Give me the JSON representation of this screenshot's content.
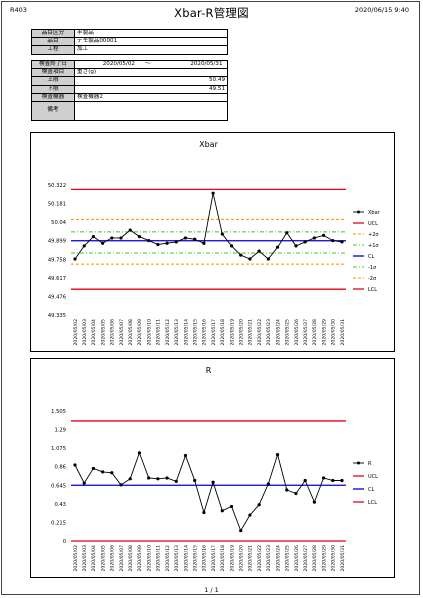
{
  "header": {
    "code": "R403",
    "title": "Xbar-R管理図",
    "datetime": "2020/06/15 9:40"
  },
  "product": [
    {
      "label": "品目区分",
      "value": "半製品"
    },
    {
      "label": "品目",
      "value": "デモ製品00001"
    },
    {
      "label": "工程",
      "value": "加工"
    }
  ],
  "inspection": {
    "period_label": "検査終了日",
    "period_from": "2020/05/02",
    "period_sep": "～",
    "period_to": "2020/05/31",
    "item_label": "検査項目",
    "item_value": "重さ(g)",
    "upper_label": "上限",
    "upper_value": "50.49",
    "lower_label": "下限",
    "lower_value": "49.51",
    "device_label": "検査機器",
    "device_value": "検査機器2",
    "remarks_label": "備考",
    "remarks_value": ""
  },
  "footer": {
    "page": "1 / 1"
  },
  "colors": {
    "ucl": "#e8001c",
    "cl": "#0000cc",
    "sigma2": "#ff8c00",
    "sigma1": "#33cc33",
    "series": "#000000"
  },
  "chart_data": [
    {
      "type": "line",
      "title": "Xbar",
      "x": [
        "2020/05/02",
        "2020/05/03",
        "2020/05/04",
        "2020/05/05",
        "2020/05/06",
        "2020/05/07",
        "2020/05/08",
        "2020/05/09",
        "2020/05/10",
        "2020/05/11",
        "2020/05/12",
        "2020/05/13",
        "2020/05/14",
        "2020/05/15",
        "2020/05/16",
        "2020/05/17",
        "2020/05/18",
        "2020/05/19",
        "2020/05/20",
        "2020/05/21",
        "2020/05/22",
        "2020/05/23",
        "2020/05/24",
        "2020/05/25",
        "2020/05/26",
        "2020/05/27",
        "2020/05/28",
        "2020/05/29",
        "2020/05/30",
        "2020/05/31"
      ],
      "yticks": [
        "50.322",
        "50.181",
        "50.04",
        "49.899",
        "49.758",
        "49.617",
        "49.476",
        "49.335"
      ],
      "ylim": [
        49.335,
        50.322
      ],
      "series": [
        {
          "name": "Xbar",
          "values": [
            49.76,
            49.86,
            49.93,
            49.88,
            49.92,
            49.92,
            49.98,
            49.93,
            49.9,
            49.87,
            49.88,
            49.89,
            49.92,
            49.91,
            49.88,
            50.26,
            49.95,
            49.86,
            49.79,
            49.76,
            49.82,
            49.76,
            49.85,
            49.96,
            49.86,
            49.89,
            49.92,
            49.94,
            49.9,
            49.89
          ]
        }
      ],
      "lines": [
        {
          "name": "UCL",
          "value": 50.289,
          "key": "ucl"
        },
        {
          "name": "+2σ",
          "value": 50.061,
          "key": "sigma2"
        },
        {
          "name": "+1σ",
          "value": 49.966,
          "key": "sigma1"
        },
        {
          "name": "CL",
          "value": 49.899,
          "key": "cl"
        },
        {
          "name": "-1σ",
          "value": 49.806,
          "key": "sigma1"
        },
        {
          "name": "-2σ",
          "value": 49.721,
          "key": "sigma2"
        },
        {
          "name": "LCL",
          "value": 49.531,
          "key": "ucl"
        }
      ],
      "legend": [
        "Xbar",
        "UCL",
        "+2σ",
        "+1σ",
        "CL",
        "-1σ",
        "-2σ",
        "LCL"
      ]
    },
    {
      "type": "line",
      "title": "R",
      "x": [
        "2020/05/02",
        "2020/05/03",
        "2020/05/04",
        "2020/05/05",
        "2020/05/06",
        "2020/05/07",
        "2020/05/08",
        "2020/05/09",
        "2020/05/10",
        "2020/05/11",
        "2020/05/12",
        "2020/05/13",
        "2020/05/14",
        "2020/05/15",
        "2020/05/16",
        "2020/05/17",
        "2020/05/18",
        "2020/05/19",
        "2020/05/20",
        "2020/05/21",
        "2020/05/22",
        "2020/05/23",
        "2020/05/24",
        "2020/05/25",
        "2020/05/26",
        "2020/05/27",
        "2020/05/28",
        "2020/05/29",
        "2020/05/30",
        "2020/05/31"
      ],
      "yticks": [
        "1.505",
        "1.29",
        "1.075",
        "0.86",
        "0.645",
        "0.43",
        "0.215",
        "0"
      ],
      "ylim": [
        0,
        1.505
      ],
      "series": [
        {
          "name": "R",
          "values": [
            0.88,
            0.67,
            0.84,
            0.8,
            0.79,
            0.65,
            0.72,
            1.02,
            0.73,
            0.72,
            0.73,
            0.69,
            0.99,
            0.7,
            0.33,
            0.68,
            0.35,
            0.4,
            0.12,
            0.3,
            0.42,
            0.66,
            1.0,
            0.59,
            0.55,
            0.7,
            0.45,
            0.73,
            0.7,
            0.7
          ]
        }
      ],
      "lines": [
        {
          "name": "UCL",
          "value": 1.39,
          "key": "ucl"
        },
        {
          "name": "CL",
          "value": 0.645,
          "key": "cl"
        },
        {
          "name": "LCL",
          "value": 0,
          "key": "ucl"
        }
      ],
      "legend": [
        "R",
        "UCL",
        "CL",
        "LCL"
      ]
    }
  ]
}
